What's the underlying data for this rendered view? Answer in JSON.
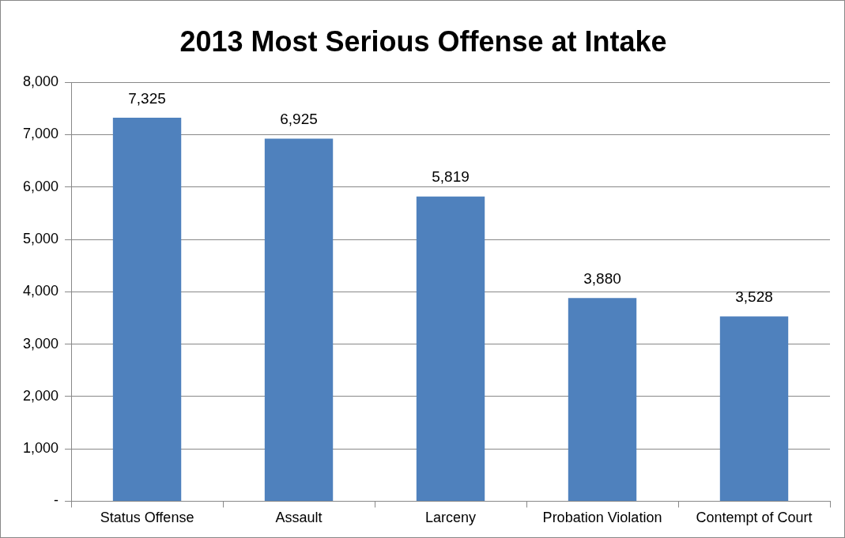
{
  "chart_data": {
    "type": "bar",
    "title": "2013 Most Serious Offense at Intake",
    "categories": [
      "Status Offense",
      "Assault",
      "Larceny",
      "Probation Violation",
      "Contempt of Court"
    ],
    "values": [
      7325,
      6925,
      5819,
      3880,
      3528
    ],
    "color": "#4f81bd",
    "ylim": [
      0,
      8000
    ],
    "yticks": [
      {
        "value": 0,
        "label": "-"
      },
      {
        "value": 1000,
        "label": "1,000"
      },
      {
        "value": 2000,
        "label": "2,000"
      },
      {
        "value": 3000,
        "label": "3,000"
      },
      {
        "value": 4000,
        "label": "4,000"
      },
      {
        "value": 5000,
        "label": "5,000"
      },
      {
        "value": 6000,
        "label": "6,000"
      },
      {
        "value": 7000,
        "label": "7,000"
      },
      {
        "value": 8000,
        "label": "8,000"
      }
    ],
    "grid": "y",
    "legend": false,
    "value_labels": [
      "7,325",
      "6,925",
      "5,819",
      "3,880",
      "3,528"
    ]
  }
}
